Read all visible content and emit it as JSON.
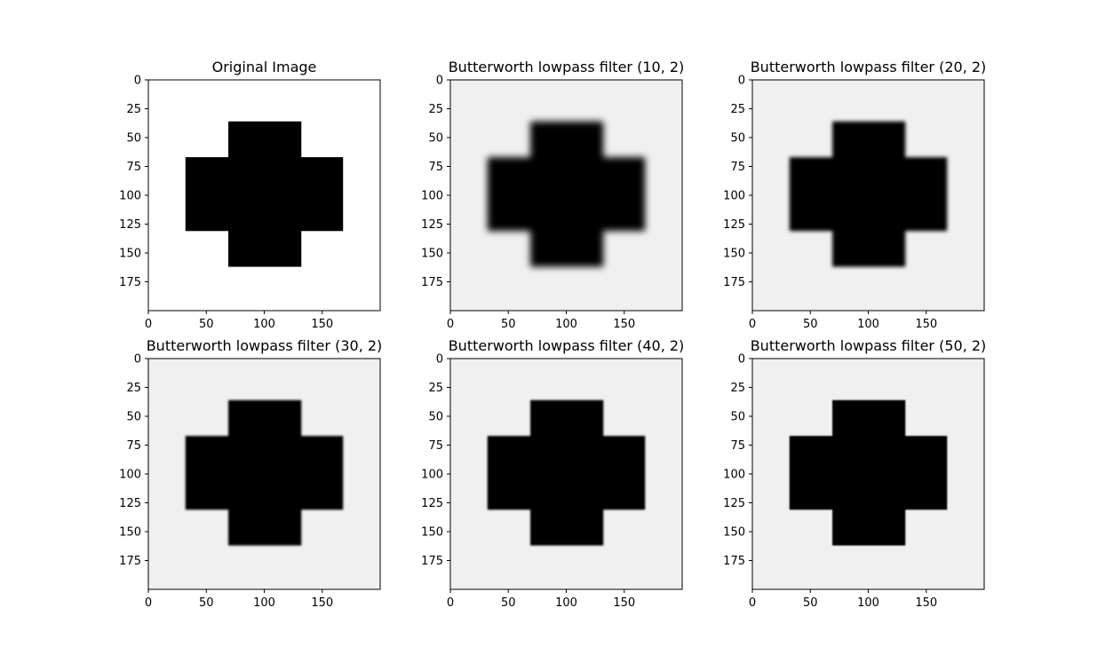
{
  "figure": {
    "background": "#ffffff",
    "frame_color": "#000000",
    "shape_color": "#000000"
  },
  "chart_data": [
    {
      "type": "image",
      "title": "Original Image",
      "cutoff": null,
      "order": null,
      "background_gray": "#ffffff",
      "xlim": [
        0,
        200
      ],
      "ylim": [
        200,
        0
      ],
      "xticks": [
        0,
        50,
        100,
        150
      ],
      "yticks": [
        0,
        25,
        50,
        75,
        100,
        125,
        150,
        175
      ],
      "shape": {
        "type": "cross",
        "vertical_bar": {
          "x": [
            69,
            132
          ],
          "y": [
            36,
            162
          ]
        },
        "horizontal_bar": {
          "x": [
            32,
            168
          ],
          "y": [
            67,
            131
          ]
        }
      },
      "blur_px": 0
    },
    {
      "type": "image",
      "title": "Butterworth lowpass filter (10, 2)",
      "cutoff": 10,
      "order": 2,
      "background_gray": "#f0f0f0",
      "xlim": [
        0,
        200
      ],
      "ylim": [
        200,
        0
      ],
      "xticks": [
        0,
        50,
        100,
        150
      ],
      "yticks": [
        0,
        25,
        50,
        75,
        100,
        125,
        150,
        175
      ],
      "shape": {
        "type": "cross",
        "vertical_bar": {
          "x": [
            69,
            132
          ],
          "y": [
            36,
            162
          ]
        },
        "horizontal_bar": {
          "x": [
            32,
            168
          ],
          "y": [
            67,
            131
          ]
        }
      },
      "blur_px": 4
    },
    {
      "type": "image",
      "title": "Butterworth lowpass filter (20, 2)",
      "cutoff": 20,
      "order": 2,
      "background_gray": "#f0f0f0",
      "xlim": [
        0,
        200
      ],
      "ylim": [
        200,
        0
      ],
      "xticks": [
        0,
        50,
        100,
        150
      ],
      "yticks": [
        0,
        25,
        50,
        75,
        100,
        125,
        150,
        175
      ],
      "shape": {
        "type": "cross",
        "vertical_bar": {
          "x": [
            69,
            132
          ],
          "y": [
            36,
            162
          ]
        },
        "horizontal_bar": {
          "x": [
            32,
            168
          ],
          "y": [
            67,
            131
          ]
        }
      },
      "blur_px": 2
    },
    {
      "type": "image",
      "title": "Butterworth lowpass filter (30, 2)",
      "cutoff": 30,
      "order": 2,
      "background_gray": "#f0f0f0",
      "xlim": [
        0,
        200
      ],
      "ylim": [
        200,
        0
      ],
      "xticks": [
        0,
        50,
        100,
        150
      ],
      "yticks": [
        0,
        25,
        50,
        75,
        100,
        125,
        150,
        175
      ],
      "shape": {
        "type": "cross",
        "vertical_bar": {
          "x": [
            69,
            132
          ],
          "y": [
            36,
            162
          ]
        },
        "horizontal_bar": {
          "x": [
            32,
            168
          ],
          "y": [
            67,
            131
          ]
        }
      },
      "blur_px": 1.4
    },
    {
      "type": "image",
      "title": "Butterworth lowpass filter (40, 2)",
      "cutoff": 40,
      "order": 2,
      "background_gray": "#f0f0f0",
      "xlim": [
        0,
        200
      ],
      "ylim": [
        200,
        0
      ],
      "xticks": [
        0,
        50,
        100,
        150
      ],
      "yticks": [
        0,
        25,
        50,
        75,
        100,
        125,
        150,
        175
      ],
      "shape": {
        "type": "cross",
        "vertical_bar": {
          "x": [
            69,
            132
          ],
          "y": [
            36,
            162
          ]
        },
        "horizontal_bar": {
          "x": [
            32,
            168
          ],
          "y": [
            67,
            131
          ]
        }
      },
      "blur_px": 1
    },
    {
      "type": "image",
      "title": "Butterworth lowpass filter (50, 2)",
      "cutoff": 50,
      "order": 2,
      "background_gray": "#f0f0f0",
      "xlim": [
        0,
        200
      ],
      "ylim": [
        200,
        0
      ],
      "xticks": [
        0,
        50,
        100,
        150
      ],
      "yticks": [
        0,
        25,
        50,
        75,
        100,
        125,
        150,
        175
      ],
      "shape": {
        "type": "cross",
        "vertical_bar": {
          "x": [
            69,
            132
          ],
          "y": [
            36,
            162
          ]
        },
        "horizontal_bar": {
          "x": [
            32,
            168
          ],
          "y": [
            67,
            131
          ]
        }
      },
      "blur_px": 0.8
    }
  ]
}
